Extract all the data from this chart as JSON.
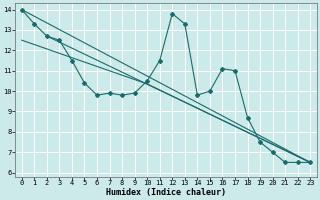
{
  "xlabel": "Humidex (Indice chaleur)",
  "background_color": "#cceaea",
  "grid_color": "#ffffff",
  "line_color": "#1a6b6b",
  "xlim": [
    -0.5,
    23.5
  ],
  "ylim": [
    5.8,
    14.3
  ],
  "yticks": [
    6,
    7,
    8,
    9,
    10,
    11,
    12,
    13,
    14
  ],
  "xticks": [
    0,
    1,
    2,
    3,
    4,
    5,
    6,
    7,
    8,
    9,
    10,
    11,
    12,
    13,
    14,
    15,
    16,
    17,
    18,
    19,
    20,
    21,
    22,
    23
  ],
  "main_x": [
    0,
    1,
    2,
    3,
    4,
    5,
    6,
    7,
    8,
    9,
    10,
    11,
    12,
    13,
    14,
    15,
    16,
    17,
    18,
    19,
    20,
    21,
    22,
    23
  ],
  "main_y": [
    14.0,
    13.3,
    12.7,
    12.5,
    11.5,
    10.4,
    9.8,
    9.9,
    9.8,
    9.9,
    10.5,
    11.5,
    13.8,
    13.3,
    9.8,
    10.0,
    11.1,
    11.0,
    8.7,
    7.5,
    7.0,
    6.5,
    6.5,
    6.5
  ],
  "trend1_x": [
    0,
    23
  ],
  "trend1_y": [
    14.0,
    6.5
  ],
  "trend2_x": [
    0,
    10,
    23
  ],
  "trend2_y": [
    12.5,
    10.35,
    6.5
  ],
  "trend3_x": [
    2,
    23
  ],
  "trend3_y": [
    12.7,
    6.5
  ],
  "marker_size": 2.0,
  "line_width": 0.8,
  "xlabel_fontsize": 6.0,
  "tick_fontsize": 5.0
}
